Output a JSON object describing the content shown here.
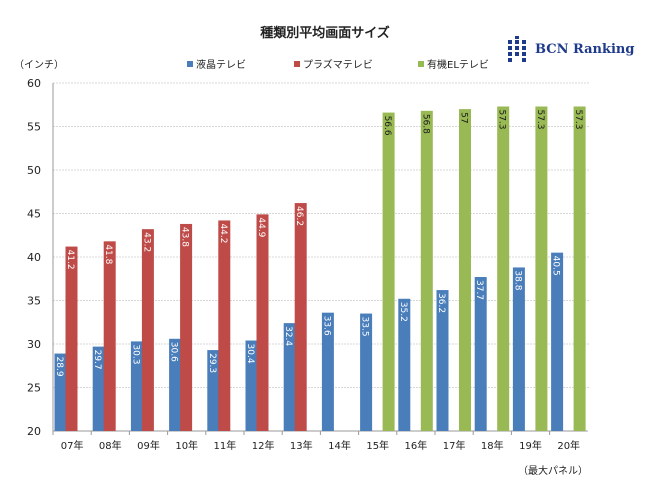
{
  "chart_data": {
    "type": "bar",
    "title": "種類別平均画面サイズ",
    "ylabel": "（インチ）",
    "note": "（最大パネル）",
    "categories": [
      "07年",
      "08年",
      "09年",
      "10年",
      "11年",
      "12年",
      "13年",
      "14年",
      "15年",
      "16年",
      "17年",
      "18年",
      "19年",
      "20年"
    ],
    "series": [
      {
        "name": "液晶テレビ",
        "color": "#4a7ebb",
        "label_color": "#ffffff",
        "values": [
          28.9,
          29.7,
          30.3,
          30.6,
          29.3,
          30.4,
          32.4,
          33.6,
          33.5,
          35.2,
          36.2,
          37.7,
          38.8,
          40.5
        ]
      },
      {
        "name": "プラズマテレビ",
        "color": "#be4b48",
        "label_color": "#ffffff",
        "values": [
          41.2,
          41.8,
          43.2,
          43.8,
          44.2,
          44.9,
          46.2,
          null,
          null,
          null,
          null,
          null,
          null,
          null
        ]
      },
      {
        "name": "有機ELテレビ",
        "color": "#98b954",
        "label_color": "#1a1a1a",
        "values": [
          null,
          null,
          null,
          null,
          null,
          null,
          null,
          null,
          56.6,
          56.8,
          57,
          57.3,
          57.3,
          57.3
        ]
      }
    ],
    "ylim": [
      20,
      60
    ],
    "yticks": [
      20,
      25,
      30,
      35,
      40,
      45,
      50,
      55,
      60
    ],
    "grid": true,
    "legend": "top"
  },
  "logo": {
    "text": "BCN Ranking"
  }
}
